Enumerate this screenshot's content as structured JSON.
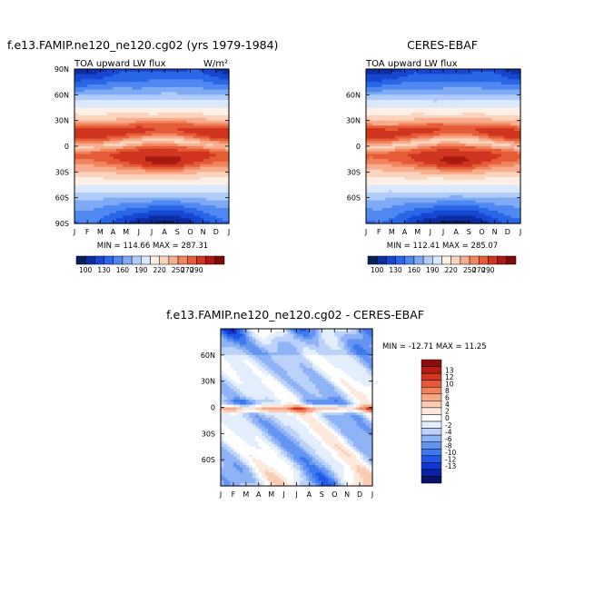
{
  "colors": {
    "abs_levels": [
      "#08205a",
      "#0b2fa2",
      "#1647d2",
      "#2a66e8",
      "#4f88f0",
      "#80aaf6",
      "#b0cdfa",
      "#dae8fd",
      "#fff0e6",
      "#fcd3bd",
      "#f8ae8e",
      "#f1855f",
      "#e65c36",
      "#d0351f",
      "#a91b11",
      "#7d0c08"
    ],
    "diff_levels": [
      "#07126a",
      "#0a22a8",
      "#1037d4",
      "#1f57e6",
      "#3e78ee",
      "#6494f2",
      "#8eb2f6",
      "#bad2fa",
      "#e3eefd",
      "#ffffff",
      "#fde9dc",
      "#fccbb2",
      "#f9a888",
      "#f2835e",
      "#e65b36",
      "#d2381f",
      "#b51d12",
      "#8d0d08"
    ]
  },
  "chart_data": [
    {
      "type": "heatmap",
      "title": "f.e13.FAMIP.ne120_ne120.cg02 (yrs 1979-1984)",
      "subtitle_left": "TOA upward LW flux",
      "subtitle_right": "W/m²",
      "x_ticks": [
        "J",
        "F",
        "M",
        "A",
        "M",
        "J",
        "J",
        "A",
        "S",
        "O",
        "N",
        "D",
        "J"
      ],
      "y_ticks": [
        "90N",
        "60N",
        "30N",
        "0",
        "30S",
        "60S",
        "90S"
      ],
      "ylim": [
        -90,
        90
      ],
      "stats": "MIN = 114.66  MAX = 287.31",
      "min": 114.66,
      "max": 287.31,
      "colorbar_labels": [
        "100",
        "130",
        "160",
        "190",
        "220",
        "250",
        "270",
        "290"
      ],
      "levels": [
        100,
        115,
        130,
        145,
        160,
        175,
        190,
        205,
        220,
        235,
        250,
        260,
        270,
        280,
        290
      ]
    },
    {
      "type": "heatmap",
      "title": "CERES-EBAF",
      "subtitle_left": "TOA upward LW flux",
      "subtitle_right": "",
      "x_ticks": [
        "J",
        "F",
        "M",
        "A",
        "M",
        "J",
        "J",
        "A",
        "S",
        "O",
        "N",
        "D",
        "J"
      ],
      "y_ticks": [
        "60N",
        "30N",
        "0",
        "30S",
        "60S"
      ],
      "ylim": [
        -90,
        90
      ],
      "stats": "MIN = 112.41  MAX = 285.07",
      "min": 112.41,
      "max": 285.07,
      "colorbar_labels": [
        "100",
        "130",
        "160",
        "190",
        "220",
        "250",
        "270",
        "290"
      ],
      "levels": [
        100,
        115,
        130,
        145,
        160,
        175,
        190,
        205,
        220,
        235,
        250,
        260,
        270,
        280,
        290
      ]
    },
    {
      "type": "heatmap",
      "title": "f.e13.FAMIP.ne120_ne120.cg02 - CERES-EBAF",
      "x_ticks": [
        "J",
        "F",
        "M",
        "A",
        "M",
        "J",
        "J",
        "A",
        "S",
        "O",
        "N",
        "D",
        "J"
      ],
      "y_ticks": [
        "60N",
        "30N",
        "0",
        "30S",
        "60S"
      ],
      "ylim": [
        -90,
        90
      ],
      "stats": "MIN = -12.71  MAX =  11.25",
      "min": -12.71,
      "max": 11.25,
      "colorbar_labels": [
        "13",
        "12",
        "10",
        "8",
        "6",
        "4",
        "2",
        "0",
        "-2",
        "-4",
        "-6",
        "-8",
        "-10",
        "-12",
        "-13"
      ],
      "levels": [
        -13,
        -12,
        -10,
        -8,
        -6,
        -4,
        -2,
        0,
        2,
        4,
        6,
        8,
        10,
        12,
        13
      ]
    }
  ]
}
